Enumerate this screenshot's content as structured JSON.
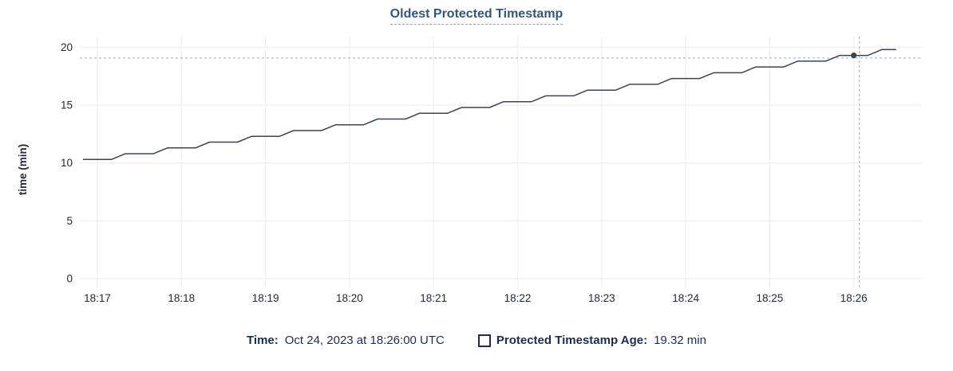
{
  "title": "Oldest Protected Timestamp",
  "legend": {
    "time_label": "Time:",
    "time_value": "Oct 24, 2023 at 18:26:00 UTC",
    "series_label": "Protected Timestamp Age:",
    "series_value": "19.32 min"
  },
  "colors": {
    "line": "#394455",
    "title": "#36557a",
    "grid": "#efefef",
    "axis_text": "#242a35",
    "crosshair": "#a3b7c3",
    "legend_text": "#1b2e52"
  },
  "chart_data": {
    "type": "line",
    "title": "Oldest Protected Timestamp",
    "xlabel": "",
    "ylabel": "time (min)",
    "ylim": [
      0,
      20
    ],
    "yticks": [
      0,
      5,
      10,
      15,
      20
    ],
    "xtick_labels": [
      "18:17",
      "18:18",
      "18:19",
      "18:20",
      "18:21",
      "18:22",
      "18:23",
      "18:24",
      "18:25",
      "18:26"
    ],
    "x_axis_start": "18:17:00",
    "x_tick_interval_seconds": 60,
    "grid": true,
    "legend_position": "bottom",
    "series": [
      {
        "name": "Protected Timestamp Age",
        "unit": "min",
        "color": "#394455",
        "start_time": "18:16:50",
        "sample_interval_seconds": 10,
        "values": [
          10.3,
          10.3,
          10.3,
          10.8,
          10.8,
          10.8,
          11.3,
          11.3,
          11.3,
          11.8,
          11.8,
          11.8,
          12.3,
          12.3,
          12.3,
          12.8,
          12.8,
          12.8,
          13.3,
          13.3,
          13.3,
          13.8,
          13.8,
          13.8,
          14.3,
          14.3,
          14.3,
          14.8,
          14.8,
          14.8,
          15.3,
          15.3,
          15.3,
          15.8,
          15.8,
          15.8,
          16.3,
          16.3,
          16.3,
          16.8,
          16.8,
          16.8,
          17.3,
          17.3,
          17.3,
          17.8,
          17.8,
          17.8,
          18.3,
          18.3,
          18.3,
          18.8,
          18.8,
          18.8,
          19.3,
          19.3,
          19.3,
          19.8,
          19.8
        ]
      }
    ],
    "hover": {
      "time": "18:26:00",
      "value_min": 19.32,
      "crosshair": {
        "x_time": "18:26:04",
        "y_value": 19.08
      }
    }
  }
}
